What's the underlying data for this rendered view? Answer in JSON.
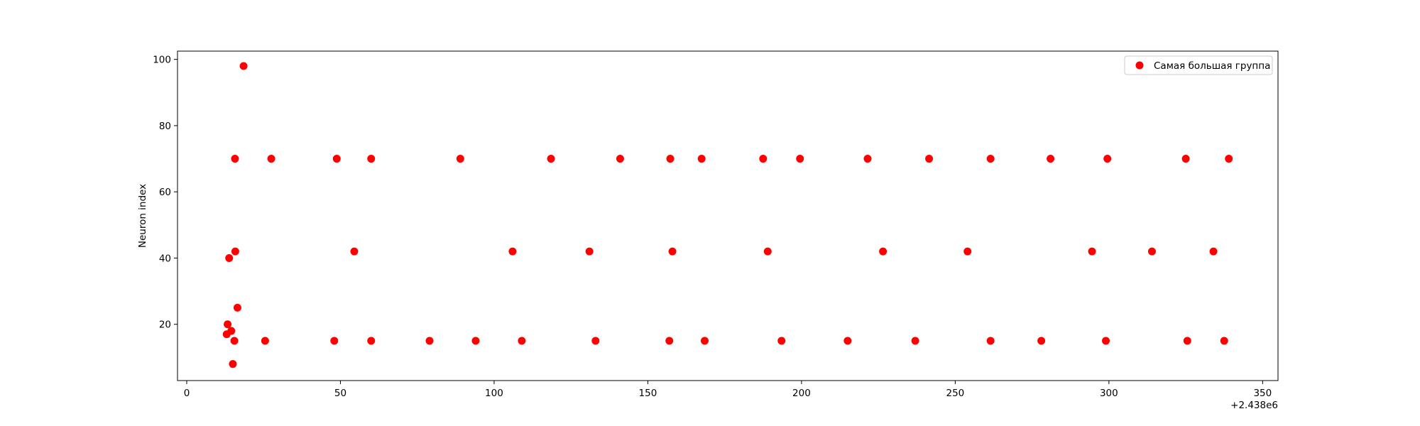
{
  "chart_data": {
    "type": "scatter",
    "title": "",
    "xlabel": "",
    "ylabel": "Neuron index",
    "x_offset_label": "+2.438e6",
    "xlim": [
      -3,
      355
    ],
    "ylim": [
      3,
      102.5
    ],
    "x_ticks": [
      0,
      50,
      100,
      150,
      200,
      250,
      300,
      350
    ],
    "y_ticks": [
      20,
      40,
      60,
      80,
      100
    ],
    "grid": false,
    "legend_position": "top-right",
    "series": [
      {
        "name": "Самая большая группа",
        "color": "#ff0000",
        "points": [
          [
            13,
            17
          ],
          [
            13.3,
            20
          ],
          [
            13.8,
            40
          ],
          [
            14.5,
            18
          ],
          [
            15,
            8
          ],
          [
            15.5,
            15
          ],
          [
            15.7,
            70
          ],
          [
            15.8,
            42
          ],
          [
            16.5,
            25
          ],
          [
            18.5,
            98
          ],
          [
            25.5,
            15
          ],
          [
            27.5,
            70
          ],
          [
            48,
            15
          ],
          [
            48.8,
            70
          ],
          [
            54.5,
            42
          ],
          [
            60,
            15
          ],
          [
            60,
            70
          ],
          [
            79,
            15
          ],
          [
            89,
            70
          ],
          [
            94,
            15
          ],
          [
            106,
            42
          ],
          [
            109,
            15
          ],
          [
            118.5,
            70
          ],
          [
            131,
            42
          ],
          [
            133,
            15
          ],
          [
            141,
            70
          ],
          [
            157,
            15
          ],
          [
            157.3,
            70
          ],
          [
            158,
            42
          ],
          [
            167.5,
            70
          ],
          [
            168.5,
            15
          ],
          [
            187.5,
            70
          ],
          [
            189,
            42
          ],
          [
            193.5,
            15
          ],
          [
            199.5,
            70
          ],
          [
            215,
            15
          ],
          [
            221.5,
            70
          ],
          [
            226.5,
            42
          ],
          [
            237,
            15
          ],
          [
            241.5,
            70
          ],
          [
            254,
            42
          ],
          [
            261.5,
            15
          ],
          [
            261.5,
            70
          ],
          [
            278,
            15
          ],
          [
            281,
            70
          ],
          [
            294.5,
            42
          ],
          [
            299,
            15
          ],
          [
            299.5,
            70
          ],
          [
            314,
            42
          ],
          [
            325,
            70
          ],
          [
            325.5,
            15
          ],
          [
            334,
            42
          ],
          [
            337.5,
            15
          ],
          [
            339,
            70
          ]
        ]
      }
    ]
  }
}
